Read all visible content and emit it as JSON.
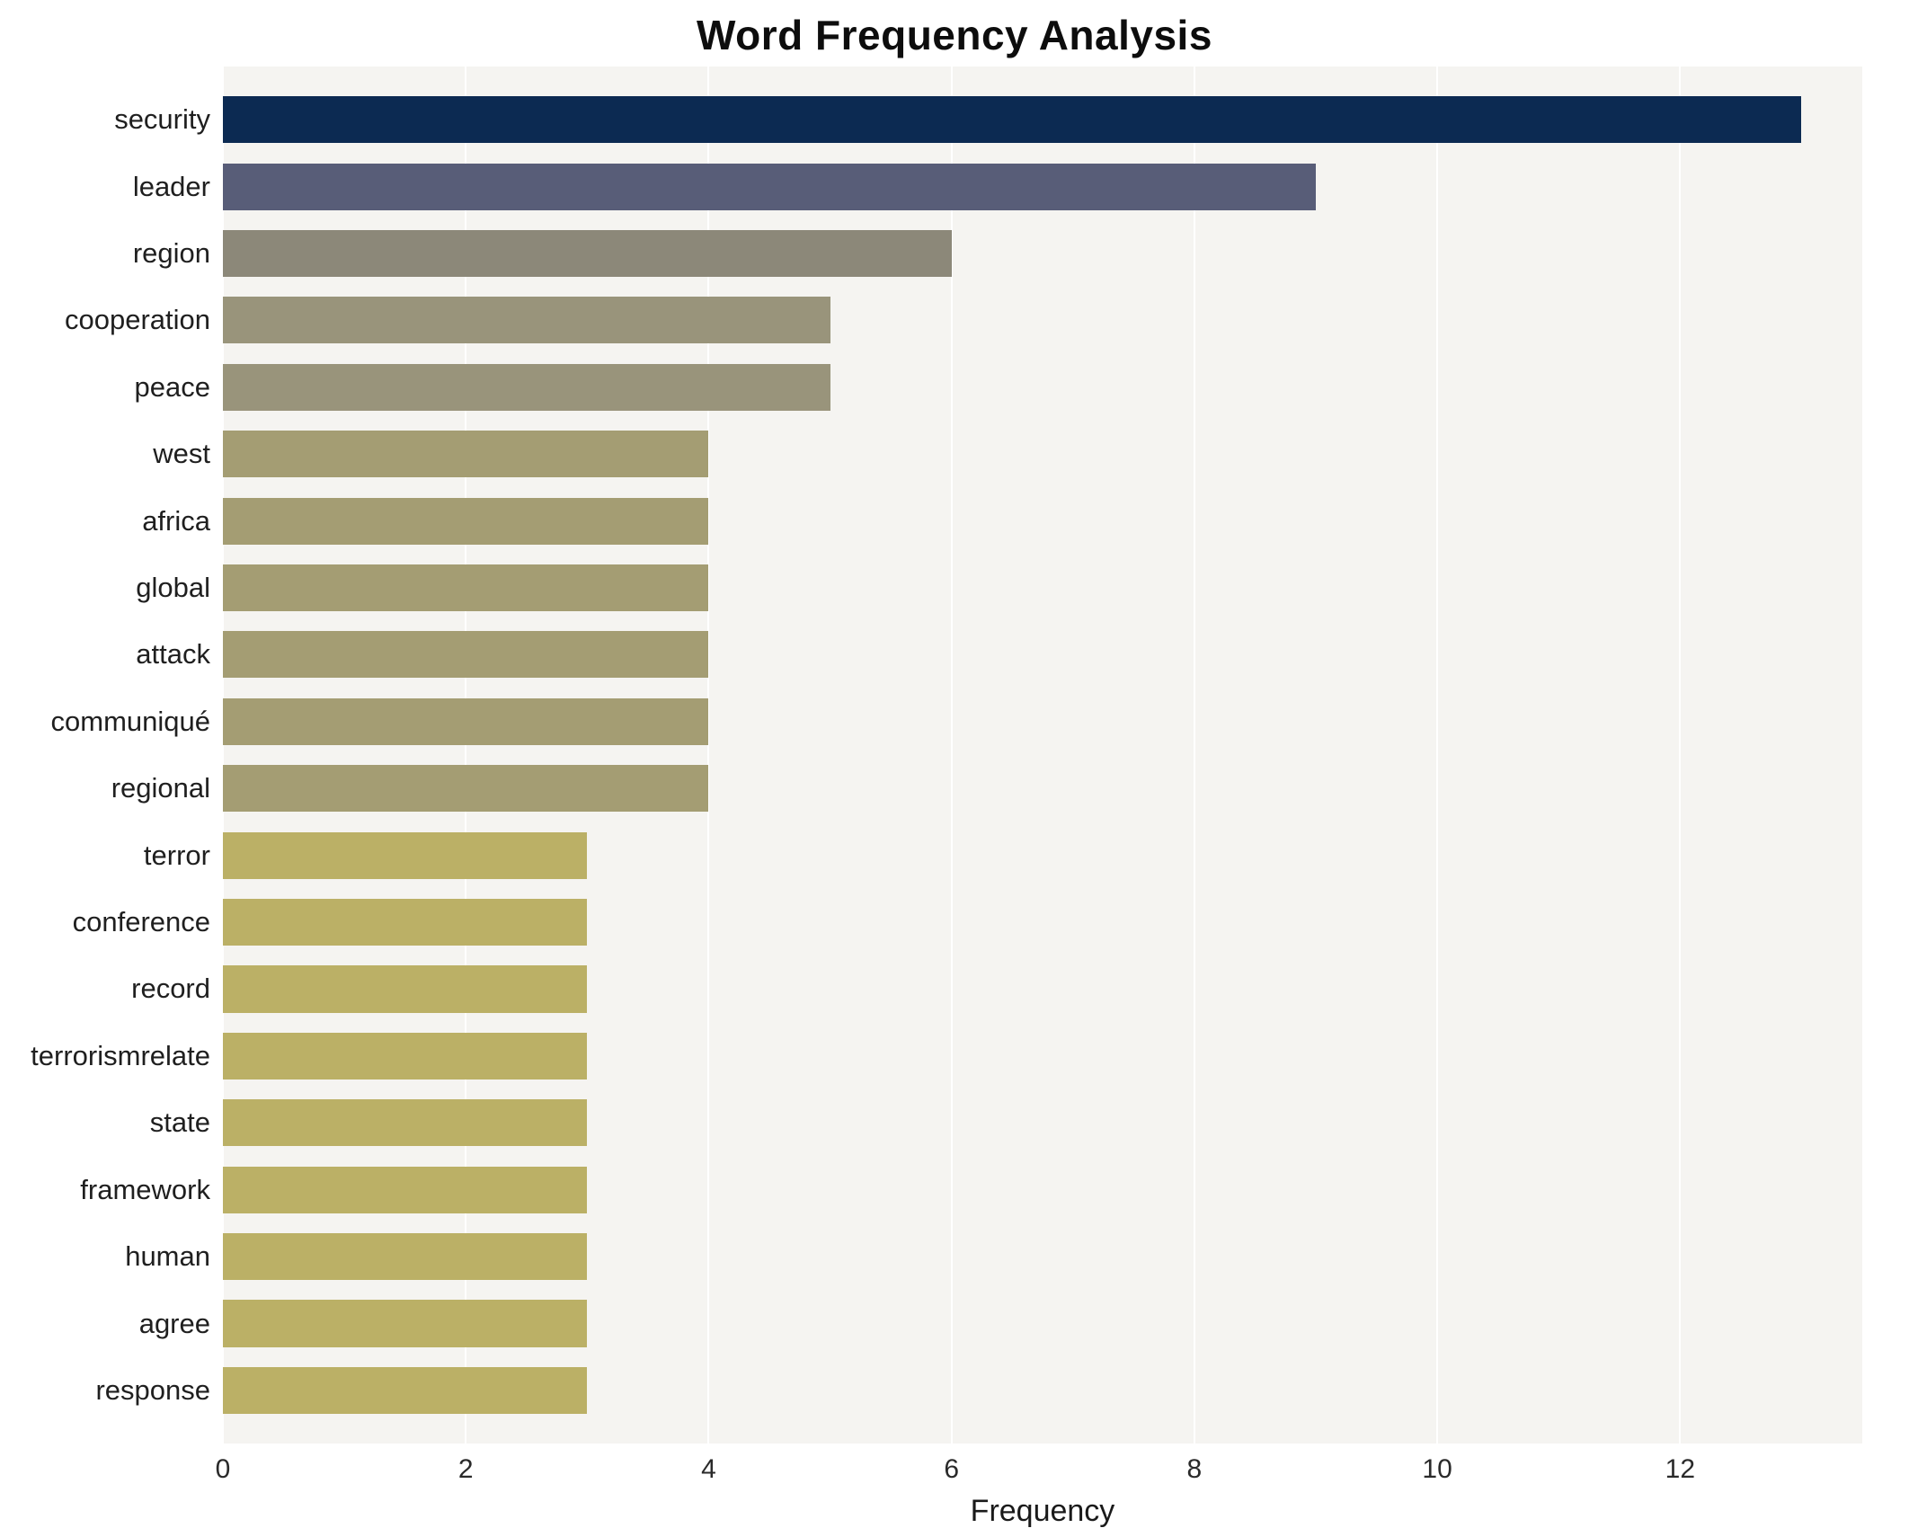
{
  "title": "Word Frequency Analysis",
  "chart_data": {
    "type": "bar",
    "orientation": "horizontal",
    "title": "Word Frequency Analysis",
    "xlabel": "Frequency",
    "ylabel": "",
    "xlim": [
      0,
      13.5
    ],
    "xticks": [
      0,
      2,
      4,
      6,
      8,
      10,
      12
    ],
    "grid": "vertical-white-on-gray",
    "legend": "none",
    "plot_bg": "#f5f4f1",
    "gridline_color": "#ffffff",
    "categories": [
      "security",
      "leader",
      "region",
      "cooperation",
      "peace",
      "west",
      "africa",
      "global",
      "attack",
      "communiqué",
      "regional",
      "terror",
      "conference",
      "record",
      "terrorismrelate",
      "state",
      "framework",
      "human",
      "agree",
      "response"
    ],
    "values": [
      13,
      9,
      6,
      5,
      5,
      4,
      4,
      4,
      4,
      4,
      4,
      3,
      3,
      3,
      3,
      3,
      3,
      3,
      3,
      3
    ],
    "colors": [
      "#0c2a52",
      "#585d78",
      "#8c8879",
      "#99947b",
      "#99947b",
      "#a49d73",
      "#a49d73",
      "#a49d73",
      "#a49d73",
      "#a49d73",
      "#a49d73",
      "#bbb066",
      "#bbb066",
      "#bbb066",
      "#bbb066",
      "#bbb066",
      "#bbb066",
      "#bbb066",
      "#bbb066",
      "#bbb066"
    ]
  }
}
